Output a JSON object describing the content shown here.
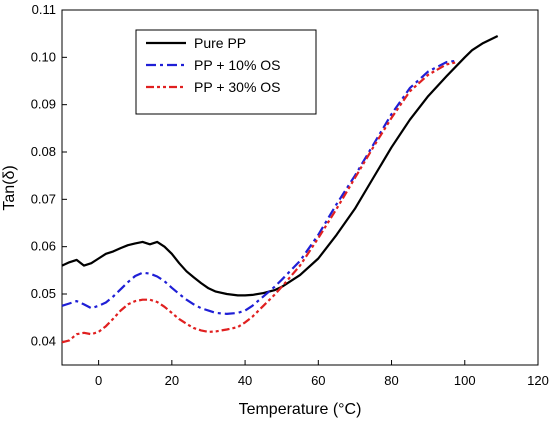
{
  "chart_data": {
    "type": "line",
    "title": "",
    "xlabel": "Temperature (°C)",
    "ylabel": "Tan(δ)",
    "xlim": [
      -10,
      120
    ],
    "ylim": [
      0.035,
      0.11
    ],
    "xticks": [
      0,
      20,
      40,
      60,
      80,
      100,
      120
    ],
    "yticks": [
      0.04,
      0.05,
      0.06,
      0.07,
      0.08,
      0.09,
      0.1,
      0.11
    ],
    "ytick_labels": [
      "0.04",
      "0.05",
      "0.06",
      "0.07",
      "0.08",
      "0.09",
      "0.10",
      "0.11"
    ],
    "grid": false,
    "legend_position": "top-left",
    "series": [
      {
        "name": "Pure PP",
        "color": "#000000",
        "style": "solid",
        "x": [
          -10,
          -8,
          -6,
          -4,
          -2,
          0,
          2,
          4,
          6,
          8,
          10,
          12,
          14,
          16,
          18,
          20,
          22,
          24,
          26,
          28,
          30,
          32,
          35,
          38,
          40,
          42,
          45,
          48,
          50,
          55,
          60,
          65,
          70,
          75,
          80,
          85,
          90,
          95,
          100,
          102,
          105,
          109
        ],
        "y": [
          0.056,
          0.0567,
          0.0572,
          0.056,
          0.0565,
          0.0575,
          0.0585,
          0.059,
          0.0597,
          0.0603,
          0.0607,
          0.061,
          0.0605,
          0.061,
          0.06,
          0.0585,
          0.0565,
          0.0548,
          0.0535,
          0.0523,
          0.0512,
          0.0505,
          0.05,
          0.0497,
          0.0497,
          0.0498,
          0.0502,
          0.0508,
          0.0515,
          0.054,
          0.0575,
          0.0625,
          0.068,
          0.0745,
          0.081,
          0.0868,
          0.0918,
          0.096,
          0.1,
          0.1015,
          0.103,
          0.1045
        ]
      },
      {
        "name": "PP + 10% OS",
        "color": "#1f1fd6",
        "style": "dashdot",
        "x": [
          -10,
          -8,
          -6,
          -4,
          -2,
          0,
          2,
          4,
          6,
          8,
          10,
          12,
          14,
          16,
          18,
          20,
          22,
          24,
          26,
          28,
          30,
          32,
          35,
          38,
          40,
          42,
          45,
          48,
          50,
          55,
          60,
          65,
          70,
          75,
          80,
          85,
          90,
          95,
          98
        ],
        "y": [
          0.0475,
          0.048,
          0.0485,
          0.0478,
          0.047,
          0.0475,
          0.0482,
          0.0495,
          0.051,
          0.0525,
          0.0538,
          0.0545,
          0.0543,
          0.0537,
          0.0527,
          0.0513,
          0.05,
          0.0488,
          0.0478,
          0.047,
          0.0465,
          0.046,
          0.0458,
          0.046,
          0.0465,
          0.0475,
          0.0495,
          0.0515,
          0.053,
          0.057,
          0.0625,
          0.069,
          0.075,
          0.0815,
          0.088,
          0.0935,
          0.097,
          0.099,
          0.0993
        ]
      },
      {
        "name": "PP + 30% OS",
        "color": "#e02020",
        "style": "dashdotdot",
        "x": [
          -10,
          -8,
          -6,
          -4,
          -2,
          0,
          2,
          4,
          6,
          8,
          10,
          12,
          14,
          16,
          18,
          20,
          22,
          24,
          26,
          28,
          30,
          32,
          35,
          38,
          40,
          42,
          45,
          48,
          50,
          55,
          60,
          65,
          70,
          75,
          80,
          85,
          90,
          95,
          98
        ],
        "y": [
          0.0398,
          0.0402,
          0.0415,
          0.0418,
          0.0415,
          0.042,
          0.0432,
          0.0448,
          0.0465,
          0.0478,
          0.0485,
          0.0488,
          0.0488,
          0.0483,
          0.0473,
          0.046,
          0.0447,
          0.0437,
          0.0428,
          0.0423,
          0.042,
          0.0421,
          0.0425,
          0.043,
          0.044,
          0.0452,
          0.0475,
          0.0498,
          0.0515,
          0.056,
          0.0618,
          0.068,
          0.0745,
          0.081,
          0.0872,
          0.0928,
          0.0963,
          0.0985,
          0.099
        ]
      }
    ]
  }
}
